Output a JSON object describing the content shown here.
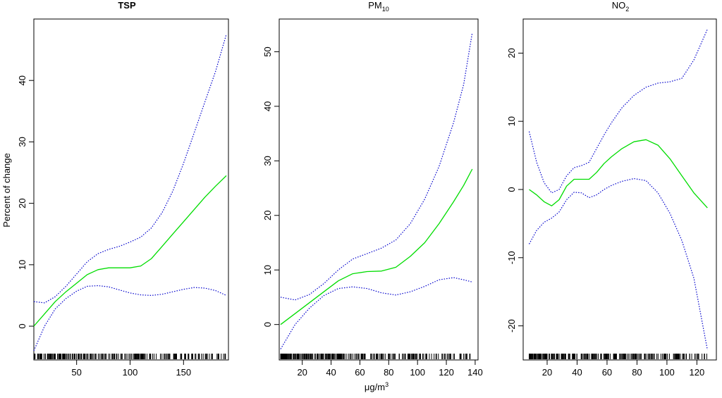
{
  "figure": {
    "ylabel": "Percent of change",
    "xlabel": "μg/m",
    "xlabel_sup": "3"
  },
  "chart_data": [
    {
      "type": "line",
      "title": "TSP",
      "title_sub": "",
      "title_bold": true,
      "xlim": [
        10,
        192
      ],
      "ylim": [
        -5.5,
        50
      ],
      "x_ticks": [
        50,
        100,
        150
      ],
      "y_ticks": [
        0,
        10,
        20,
        30,
        40
      ],
      "series": [
        {
          "role": "estimate",
          "color": "#00dd00",
          "dashed": false,
          "points": [
            [
              10,
              0
            ],
            [
              20,
              2
            ],
            [
              30,
              4
            ],
            [
              40,
              5.6
            ],
            [
              50,
              7
            ],
            [
              60,
              8.4
            ],
            [
              70,
              9.2
            ],
            [
              80,
              9.5
            ],
            [
              90,
              9.5
            ],
            [
              100,
              9.5
            ],
            [
              110,
              9.8
            ],
            [
              120,
              11
            ],
            [
              130,
              13
            ],
            [
              140,
              15
            ],
            [
              150,
              17
            ],
            [
              160,
              19
            ],
            [
              170,
              21
            ],
            [
              180,
              22.8
            ],
            [
              190,
              24.5
            ]
          ]
        },
        {
          "role": "upper",
          "color": "#0000cc",
          "dashed": true,
          "points": [
            [
              10,
              4
            ],
            [
              20,
              3.8
            ],
            [
              30,
              4.8
            ],
            [
              40,
              6.5
            ],
            [
              50,
              8.5
            ],
            [
              60,
              10.5
            ],
            [
              70,
              11.8
            ],
            [
              80,
              12.5
            ],
            [
              90,
              13
            ],
            [
              100,
              13.7
            ],
            [
              110,
              14.5
            ],
            [
              120,
              16
            ],
            [
              130,
              18.5
            ],
            [
              140,
              22
            ],
            [
              150,
              26.5
            ],
            [
              160,
              31.5
            ],
            [
              170,
              36.5
            ],
            [
              180,
              41.5
            ],
            [
              190,
              47.5
            ]
          ]
        },
        {
          "role": "lower",
          "color": "#0000cc",
          "dashed": true,
          "points": [
            [
              10,
              -4
            ],
            [
              20,
              0
            ],
            [
              30,
              2.8
            ],
            [
              40,
              4.5
            ],
            [
              50,
              5.7
            ],
            [
              60,
              6.5
            ],
            [
              70,
              6.6
            ],
            [
              80,
              6.4
            ],
            [
              90,
              5.9
            ],
            [
              100,
              5.4
            ],
            [
              110,
              5.1
            ],
            [
              120,
              5
            ],
            [
              130,
              5.2
            ],
            [
              140,
              5.6
            ],
            [
              150,
              6
            ],
            [
              160,
              6.3
            ],
            [
              170,
              6.2
            ],
            [
              180,
              5.8
            ],
            [
              190,
              5
            ]
          ]
        }
      ]
    },
    {
      "type": "line",
      "title": "PM",
      "title_sub": "10",
      "title_bold": false,
      "xlim": [
        4,
        142
      ],
      "ylim": [
        -6.5,
        56
      ],
      "x_ticks": [
        20,
        40,
        60,
        80,
        100,
        120,
        140
      ],
      "y_ticks": [
        0,
        10,
        20,
        30,
        40,
        50
      ],
      "series": [
        {
          "role": "estimate",
          "color": "#00dd00",
          "dashed": false,
          "points": [
            [
              5,
              0
            ],
            [
              15,
              2
            ],
            [
              25,
              4
            ],
            [
              35,
              6
            ],
            [
              45,
              8
            ],
            [
              55,
              9.3
            ],
            [
              65,
              9.7
            ],
            [
              75,
              9.8
            ],
            [
              85,
              10.5
            ],
            [
              95,
              12.5
            ],
            [
              105,
              15
            ],
            [
              115,
              18.5
            ],
            [
              125,
              22.5
            ],
            [
              132,
              25.5
            ],
            [
              138,
              28.5
            ]
          ]
        },
        {
          "role": "upper",
          "color": "#0000cc",
          "dashed": true,
          "points": [
            [
              5,
              5
            ],
            [
              15,
              4.5
            ],
            [
              25,
              5.5
            ],
            [
              35,
              7.5
            ],
            [
              45,
              10
            ],
            [
              55,
              12
            ],
            [
              65,
              13
            ],
            [
              75,
              14
            ],
            [
              85,
              15.5
            ],
            [
              95,
              18.5
            ],
            [
              105,
              23
            ],
            [
              115,
              29
            ],
            [
              125,
              37
            ],
            [
              132,
              44
            ],
            [
              138,
              53.5
            ]
          ]
        },
        {
          "role": "lower",
          "color": "#0000cc",
          "dashed": true,
          "points": [
            [
              5,
              -4.5
            ],
            [
              15,
              0
            ],
            [
              25,
              3
            ],
            [
              35,
              5.3
            ],
            [
              45,
              6.6
            ],
            [
              55,
              6.9
            ],
            [
              65,
              6.6
            ],
            [
              75,
              5.8
            ],
            [
              85,
              5.4
            ],
            [
              95,
              6
            ],
            [
              105,
              7
            ],
            [
              115,
              8.2
            ],
            [
              125,
              8.6
            ],
            [
              132,
              8.2
            ],
            [
              138,
              7.8
            ]
          ]
        }
      ]
    },
    {
      "type": "line",
      "title": "NO",
      "title_sub": "2",
      "title_bold": false,
      "xlim": [
        4,
        133
      ],
      "ylim": [
        -25,
        25
      ],
      "x_ticks": [
        20,
        40,
        60,
        80,
        100,
        120
      ],
      "y_ticks": [
        -20,
        -10,
        0,
        10,
        20
      ],
      "series": [
        {
          "role": "estimate",
          "color": "#00dd00",
          "dashed": false,
          "points": [
            [
              8,
              0
            ],
            [
              13,
              -0.8
            ],
            [
              18,
              -1.8
            ],
            [
              23,
              -2.4
            ],
            [
              28,
              -1.5
            ],
            [
              33,
              0.5
            ],
            [
              38,
              1.5
            ],
            [
              43,
              1.5
            ],
            [
              48,
              1.5
            ],
            [
              53,
              2.5
            ],
            [
              58,
              3.8
            ],
            [
              63,
              4.8
            ],
            [
              70,
              6
            ],
            [
              78,
              7
            ],
            [
              86,
              7.3
            ],
            [
              94,
              6.5
            ],
            [
              102,
              4.5
            ],
            [
              110,
              2
            ],
            [
              118,
              -0.5
            ],
            [
              127,
              -2.7
            ]
          ]
        },
        {
          "role": "upper",
          "color": "#0000cc",
          "dashed": true,
          "points": [
            [
              8,
              8.5
            ],
            [
              13,
              4
            ],
            [
              18,
              1
            ],
            [
              23,
              -0.5
            ],
            [
              28,
              0
            ],
            [
              33,
              2
            ],
            [
              38,
              3.2
            ],
            [
              43,
              3.5
            ],
            [
              48,
              4
            ],
            [
              53,
              6
            ],
            [
              58,
              8
            ],
            [
              63,
              9.8
            ],
            [
              70,
              12
            ],
            [
              78,
              13.8
            ],
            [
              86,
              15
            ],
            [
              94,
              15.6
            ],
            [
              102,
              15.8
            ],
            [
              110,
              16.3
            ],
            [
              118,
              19
            ],
            [
              127,
              23.5
            ]
          ]
        },
        {
          "role": "lower",
          "color": "#0000cc",
          "dashed": true,
          "points": [
            [
              8,
              -8
            ],
            [
              13,
              -6
            ],
            [
              18,
              -4.8
            ],
            [
              23,
              -4.2
            ],
            [
              28,
              -3.3
            ],
            [
              33,
              -1.5
            ],
            [
              38,
              -0.4
            ],
            [
              43,
              -0.5
            ],
            [
              48,
              -1.2
            ],
            [
              53,
              -0.8
            ],
            [
              58,
              0
            ],
            [
              63,
              0.6
            ],
            [
              70,
              1.2
            ],
            [
              78,
              1.6
            ],
            [
              86,
              1.3
            ],
            [
              94,
              -0.5
            ],
            [
              102,
              -3.5
            ],
            [
              110,
              -7.5
            ],
            [
              118,
              -13
            ],
            [
              127,
              -23.5
            ]
          ]
        }
      ]
    }
  ]
}
